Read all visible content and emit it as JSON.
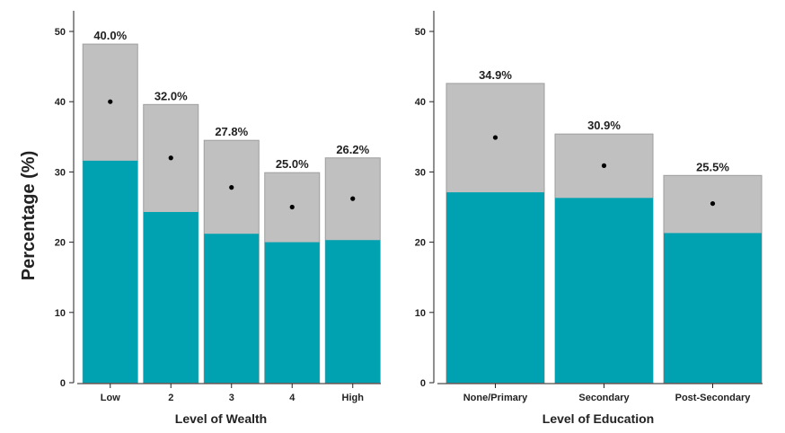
{
  "ylabel": "Percentage (%)",
  "colors": {
    "range_fill": "#c0c0c0",
    "range_stroke": "#9e9e9e",
    "base_fill": "#00a1b0",
    "point": "#000000",
    "axis": "#222222"
  },
  "chart_data": [
    {
      "type": "bar",
      "xlabel": "Level of Wealth",
      "ylabel": "Percentage (%)",
      "ylim": [
        0,
        50
      ],
      "yticks": [
        0,
        10,
        20,
        30,
        40,
        50
      ],
      "categories": [
        "Low",
        "2",
        "3",
        "4",
        "High"
      ],
      "series": [
        {
          "values": [
            31.6,
            24.3,
            21.2,
            20.0,
            20.3
          ]
        },
        {
          "values": [
            48.2,
            39.6,
            34.5,
            29.9,
            32.0
          ]
        },
        {
          "values": [
            40.0,
            32.0,
            27.8,
            25.0,
            26.2
          ]
        }
      ],
      "labels": [
        "40.0%",
        "32.0%",
        "27.8%",
        "25.0%",
        "26.2%"
      ]
    },
    {
      "type": "bar",
      "xlabel": "Level of Education",
      "ylim": [
        0,
        50
      ],
      "yticks": [
        0,
        10,
        20,
        30,
        40,
        50
      ],
      "categories": [
        "None/Primary",
        "Secondary",
        "Post-Secondary"
      ],
      "series": [
        {
          "values": [
            27.1,
            26.3,
            21.3
          ]
        },
        {
          "values": [
            42.6,
            35.4,
            29.5
          ]
        },
        {
          "values": [
            34.9,
            30.9,
            25.5
          ]
        }
      ],
      "labels": [
        "34.9%",
        "30.9%",
        "25.5%"
      ]
    }
  ]
}
